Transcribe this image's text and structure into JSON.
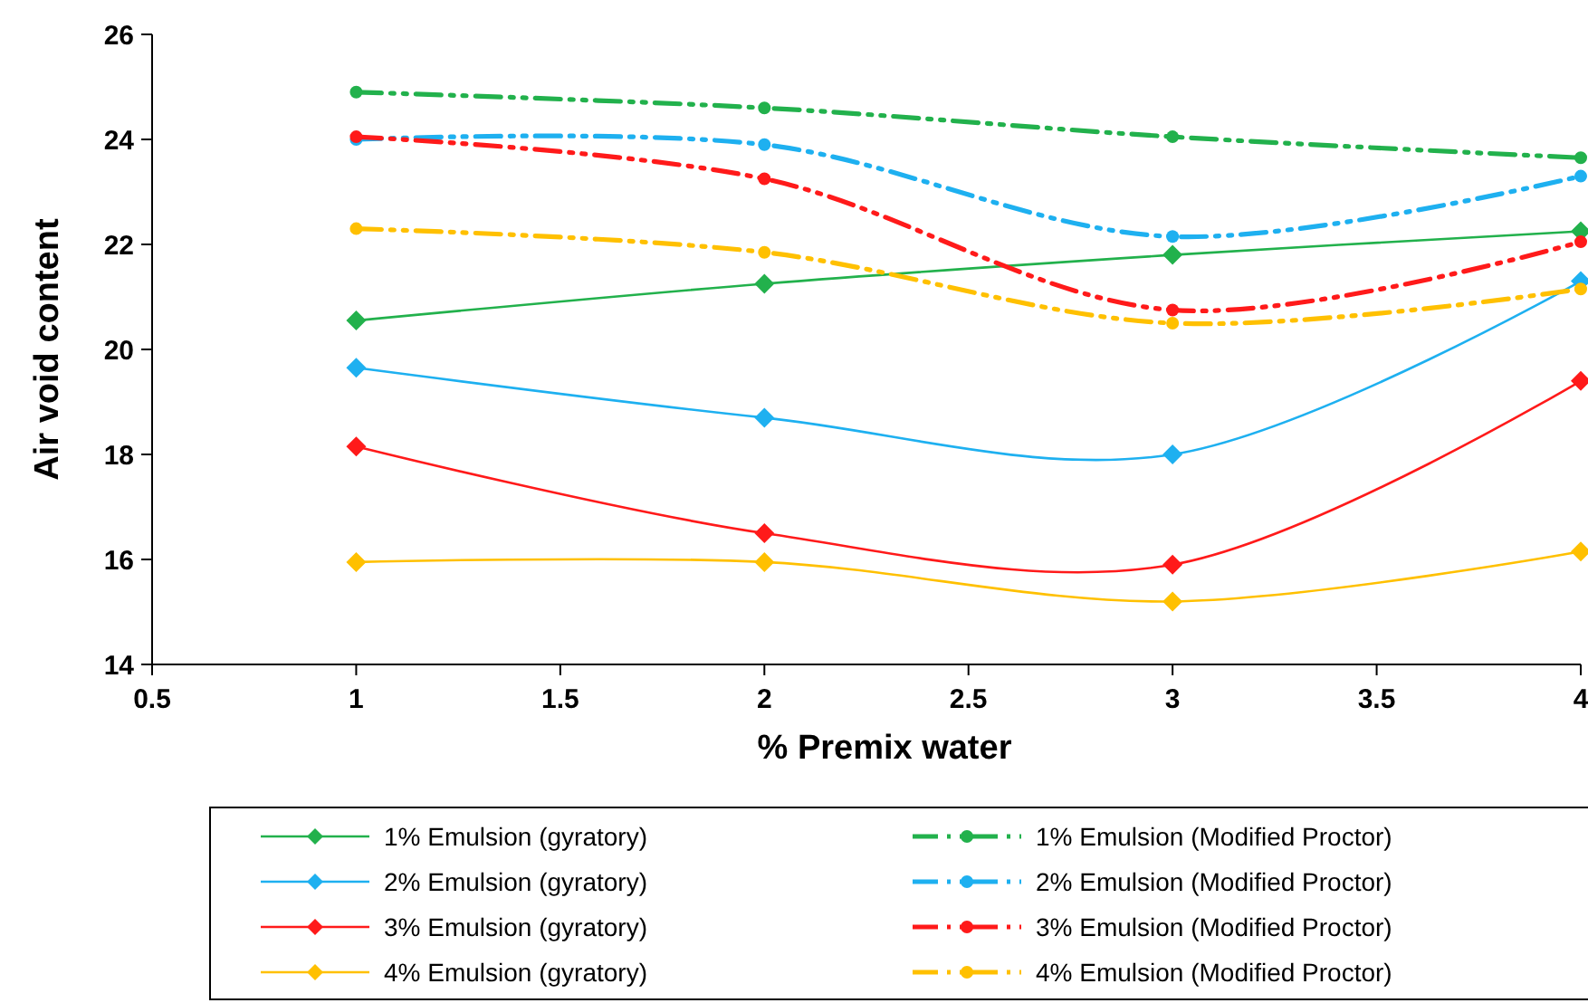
{
  "chart_data": {
    "type": "line",
    "xlabel": "% Premix water",
    "ylabel": "Air void content",
    "x": [
      1,
      2,
      3,
      4
    ],
    "xlim": [
      0.5,
      4
    ],
    "xticks": [
      0.5,
      1,
      1.5,
      2,
      2.5,
      3,
      3.5,
      4
    ],
    "ylim": [
      14,
      26
    ],
    "yticks": [
      14,
      16,
      18,
      20,
      22,
      24,
      26
    ],
    "grid": false,
    "legend": "bottom",
    "series": [
      {
        "name": "1% Emulsion (gyratory)",
        "color": "#22b14c",
        "marker": "diamond",
        "line_style": "solid",
        "values": [
          20.55,
          21.25,
          21.8,
          22.25
        ]
      },
      {
        "name": "1% Emulsion (Modified Proctor)",
        "color": "#22b14c",
        "marker": "circle",
        "line_style": "dashed",
        "values": [
          24.9,
          24.6,
          24.05,
          23.65
        ]
      },
      {
        "name": "2% Emulsion (gyratory)",
        "color": "#1eb0f0",
        "marker": "diamond",
        "line_style": "solid",
        "values": [
          19.65,
          18.7,
          18.0,
          21.3
        ]
      },
      {
        "name": "2% Emulsion (Modified Proctor)",
        "color": "#1eb0f0",
        "marker": "circle",
        "line_style": "dashed",
        "values": [
          24.0,
          23.9,
          22.15,
          23.3
        ]
      },
      {
        "name": "3% Emulsion (gyratory)",
        "color": "#ff1a1a",
        "marker": "diamond",
        "line_style": "solid",
        "values": [
          18.15,
          16.5,
          15.9,
          19.4
        ]
      },
      {
        "name": "3% Emulsion (Modified Proctor)",
        "color": "#ff1a1a",
        "marker": "circle",
        "line_style": "dashed",
        "values": [
          24.05,
          23.25,
          20.75,
          22.05
        ]
      },
      {
        "name": "4% Emulsion (gyratory)",
        "color": "#ffc000",
        "marker": "diamond",
        "line_style": "solid",
        "values": [
          15.95,
          15.95,
          15.2,
          16.15
        ]
      },
      {
        "name": "4% Emulsion (Modified Proctor)",
        "color": "#ffc000",
        "marker": "circle",
        "line_style": "dashed",
        "values": [
          22.3,
          21.85,
          20.5,
          21.15
        ]
      }
    ]
  }
}
